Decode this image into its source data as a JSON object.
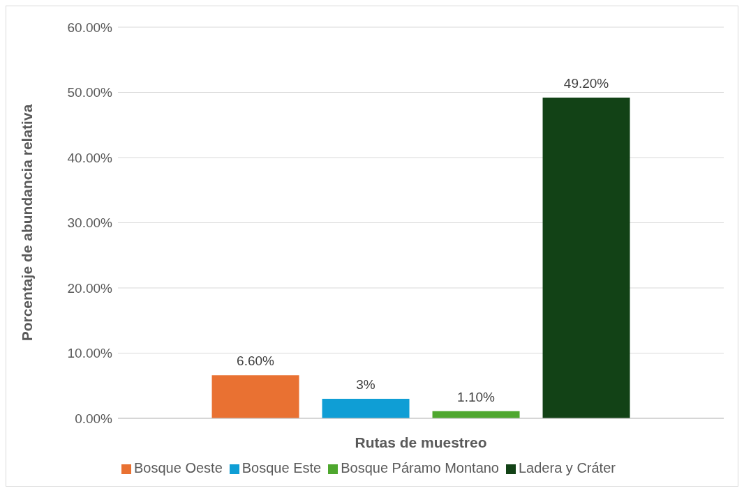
{
  "chart_data": {
    "type": "bar",
    "xlabel": "Rutas de muestreo",
    "ylabel": "Porcentaje de abundancia relativa",
    "categories": [
      null
    ],
    "series": [
      {
        "name": "Bosque Oeste",
        "color": "#e97132",
        "values": [
          6.6
        ],
        "value_labels": [
          "6.60%"
        ]
      },
      {
        "name": "Bosque Este",
        "color": "#0f9ed5",
        "values": [
          3
        ],
        "value_labels": [
          "3%"
        ]
      },
      {
        "name": "Bosque Páramo Montano",
        "color": "#4ea72e",
        "values": [
          1.1
        ],
        "value_labels": [
          "1.10%"
        ]
      },
      {
        "name": "Ladera y Cráter",
        "color": "#124216",
        "values": [
          49.2
        ],
        "value_labels": [
          "49.20%"
        ]
      }
    ],
    "ylim": [
      0,
      60
    ],
    "yticks": [
      {
        "value": 0,
        "label": "0.00%"
      },
      {
        "value": 10,
        "label": "10.00%"
      },
      {
        "value": 20,
        "label": "20.00%"
      },
      {
        "value": 30,
        "label": "30.00%"
      },
      {
        "value": 40,
        "label": "40.00%"
      },
      {
        "value": 50,
        "label": "50.00%"
      },
      {
        "value": 60,
        "label": "60.00%"
      }
    ],
    "grid": "y",
    "legend": "bottom"
  }
}
